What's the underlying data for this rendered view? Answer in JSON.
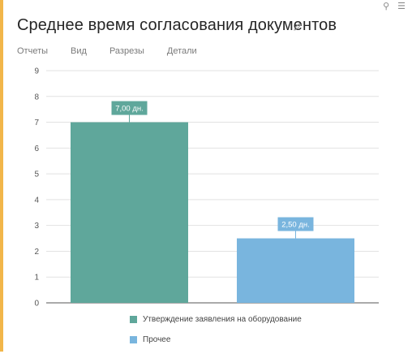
{
  "header": {
    "title": "Среднее время согласования документов",
    "icons": [
      "pin-icon",
      "menu-icon",
      "pencil-icon"
    ]
  },
  "nav": {
    "items": [
      "Отчеты",
      "Вид",
      "Разрезы",
      "Детали"
    ]
  },
  "colors": {
    "accent": "#f2b64a",
    "series1": "#5fa79b",
    "series2": "#79b5de",
    "grid": "#e2e2e2",
    "axis": "#555555"
  },
  "chart_data": {
    "type": "bar",
    "categories": [
      "Утверждение заявления на оборудование",
      "Прочее"
    ],
    "values": [
      7.0,
      2.5
    ],
    "data_labels": [
      "7,00 дн.",
      "2,50 дн."
    ],
    "colors": [
      "#5fa79b",
      "#79b5de"
    ],
    "yticks": [
      0,
      1,
      2,
      3,
      4,
      5,
      6,
      7,
      8,
      9
    ],
    "ylim": [
      0,
      9
    ],
    "grid": true,
    "legend_position": "bottom"
  }
}
